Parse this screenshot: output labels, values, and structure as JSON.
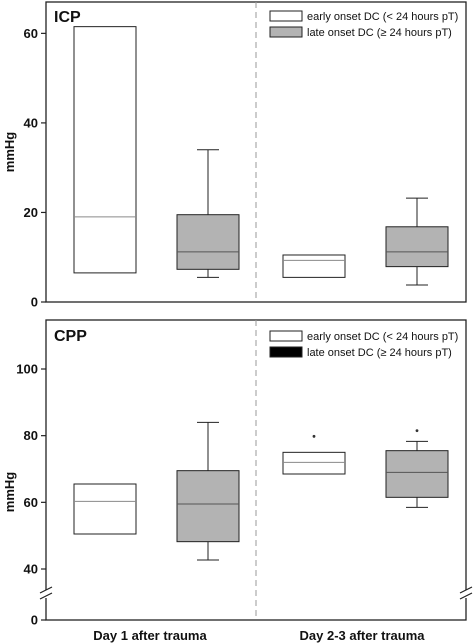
{
  "colors": {
    "early": "#ffffff",
    "late": "#b3b3b3",
    "legend_late_cpp": "#000000",
    "frame": "#222222",
    "divider": "#9a9a9a",
    "median_early": "#8a8a8a",
    "median_late": "#555555"
  },
  "x_categories": [
    "Day 1 after trauma",
    "Day 2-3 after trauma"
  ],
  "chart_data": [
    {
      "type": "box",
      "title": "ICP",
      "ylabel": "mmHg",
      "ylim": [
        0,
        66
      ],
      "yticks": [
        0,
        20,
        40,
        60
      ],
      "legend": {
        "placement": "top-right",
        "items": [
          {
            "label": "early onset DC (< 24 hours pT)",
            "fill": "#ffffff"
          },
          {
            "label": "late onset DC (≥ 24 hours pT)",
            "fill": "#b3b3b3"
          }
        ]
      },
      "groups": [
        {
          "category": "Day 1 after trauma",
          "boxes": [
            {
              "series": "early",
              "q1": 6.5,
              "median": 19,
              "q3": 61.5,
              "whisker_low": null,
              "whisker_high": null,
              "outliers": []
            },
            {
              "series": "late",
              "q1": 7.3,
              "median": 11.2,
              "q3": 19.5,
              "whisker_low": 5.5,
              "whisker_high": 34,
              "outliers": []
            }
          ]
        },
        {
          "category": "Day 2-3 after trauma",
          "boxes": [
            {
              "series": "early",
              "q1": 5.5,
              "median": 9.3,
              "q3": 10.5,
              "whisker_low": null,
              "whisker_high": null,
              "outliers": []
            },
            {
              "series": "late",
              "q1": 7.9,
              "median": 11.2,
              "q3": 16.8,
              "whisker_low": 3.8,
              "whisker_high": 23.2,
              "outliers": []
            }
          ]
        }
      ]
    },
    {
      "type": "box",
      "title": "CPP",
      "ylabel": "mmHg",
      "ylim": [
        0,
        106
      ],
      "axis_break": true,
      "yticks": [
        0,
        40,
        60,
        80,
        100
      ],
      "legend": {
        "placement": "top-right",
        "items": [
          {
            "label": "early onset DC (< 24 hours pT)",
            "fill": "#ffffff"
          },
          {
            "label": "late onset DC (≥ 24 hours pT)",
            "fill": "#000000"
          }
        ]
      },
      "groups": [
        {
          "category": "Day 1 after trauma",
          "boxes": [
            {
              "series": "early",
              "q1": 50.5,
              "median": 60.3,
              "q3": 65.5,
              "whisker_low": null,
              "whisker_high": null,
              "outliers": []
            },
            {
              "series": "late",
              "q1": 48.2,
              "median": 59.5,
              "q3": 69.5,
              "whisker_low": 42.7,
              "whisker_high": 84,
              "outliers": []
            }
          ]
        },
        {
          "category": "Day 2-3 after trauma",
          "boxes": [
            {
              "series": "early",
              "q1": 68.5,
              "median": 72,
              "q3": 75,
              "whisker_low": null,
              "whisker_high": null,
              "outliers": [
                79.8
              ]
            },
            {
              "series": "late",
              "q1": 61.5,
              "median": 69,
              "q3": 75.5,
              "whisker_low": 58.5,
              "whisker_high": 78.3,
              "outliers": [
                81.5
              ]
            }
          ]
        }
      ]
    }
  ]
}
